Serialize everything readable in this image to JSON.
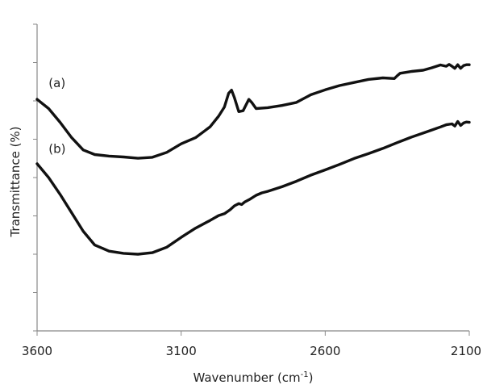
{
  "chart_data": {
    "type": "line",
    "title": "",
    "xlabel": "Wavenumber (cm",
    "xlabel_sup": "-1",
    "xlabel_close": ")",
    "ylabel": "Transmittance (%)",
    "xlim": [
      3600,
      2100
    ],
    "x_reversed": true,
    "ylim": [
      0,
      100
    ],
    "y_tick_labels_shown": false,
    "y_tick_count": 8,
    "x_ticks": [
      3600,
      3100,
      2600,
      2100
    ],
    "x_tick_labels": [
      "3600",
      "3100",
      "2600",
      "2100"
    ],
    "grid": false,
    "series": [
      {
        "name": "(a)",
        "color": "#111111",
        "points": [
          [
            3600,
            75.5
          ],
          [
            3560,
            72.5
          ],
          [
            3520,
            68.0
          ],
          [
            3480,
            63.0
          ],
          [
            3440,
            59.0
          ],
          [
            3400,
            57.5
          ],
          [
            3350,
            57.0
          ],
          [
            3300,
            56.7
          ],
          [
            3250,
            56.3
          ],
          [
            3200,
            56.6
          ],
          [
            3150,
            58.2
          ],
          [
            3100,
            61.0
          ],
          [
            3050,
            63.0
          ],
          [
            3000,
            66.5
          ],
          [
            2970,
            70.0
          ],
          [
            2950,
            73.0
          ],
          [
            2935,
            77.5
          ],
          [
            2925,
            78.5
          ],
          [
            2915,
            76.0
          ],
          [
            2900,
            71.5
          ],
          [
            2885,
            71.8
          ],
          [
            2865,
            75.5
          ],
          [
            2855,
            74.5
          ],
          [
            2840,
            72.5
          ],
          [
            2800,
            72.8
          ],
          [
            2750,
            73.5
          ],
          [
            2700,
            74.5
          ],
          [
            2650,
            77.0
          ],
          [
            2600,
            78.6
          ],
          [
            2550,
            80.0
          ],
          [
            2500,
            81.0
          ],
          [
            2450,
            82.0
          ],
          [
            2400,
            82.5
          ],
          [
            2360,
            82.3
          ],
          [
            2350,
            83.2
          ],
          [
            2340,
            84.0
          ],
          [
            2300,
            84.6
          ],
          [
            2260,
            85.0
          ],
          [
            2230,
            85.8
          ],
          [
            2200,
            86.7
          ],
          [
            2180,
            86.3
          ],
          [
            2170,
            86.9
          ],
          [
            2160,
            86.3
          ],
          [
            2150,
            85.6
          ],
          [
            2140,
            86.8
          ],
          [
            2130,
            85.6
          ],
          [
            2120,
            86.5
          ],
          [
            2110,
            86.8
          ],
          [
            2100,
            86.8
          ]
        ]
      },
      {
        "name": "(b)",
        "color": "#111111",
        "points": [
          [
            3600,
            54.5
          ],
          [
            3560,
            50.0
          ],
          [
            3520,
            44.5
          ],
          [
            3480,
            38.5
          ],
          [
            3440,
            32.5
          ],
          [
            3400,
            28.0
          ],
          [
            3350,
            26.0
          ],
          [
            3300,
            25.3
          ],
          [
            3250,
            25.0
          ],
          [
            3200,
            25.5
          ],
          [
            3150,
            27.3
          ],
          [
            3100,
            30.5
          ],
          [
            3050,
            33.5
          ],
          [
            3000,
            36.0
          ],
          [
            2970,
            37.6
          ],
          [
            2950,
            38.2
          ],
          [
            2930,
            39.5
          ],
          [
            2915,
            40.8
          ],
          [
            2900,
            41.5
          ],
          [
            2890,
            41.2
          ],
          [
            2880,
            42.0
          ],
          [
            2860,
            43.0
          ],
          [
            2840,
            44.2
          ],
          [
            2820,
            45.0
          ],
          [
            2800,
            45.5
          ],
          [
            2750,
            47.0
          ],
          [
            2700,
            48.8
          ],
          [
            2650,
            50.8
          ],
          [
            2600,
            52.5
          ],
          [
            2550,
            54.3
          ],
          [
            2500,
            56.2
          ],
          [
            2450,
            57.8
          ],
          [
            2400,
            59.5
          ],
          [
            2350,
            61.4
          ],
          [
            2300,
            63.2
          ],
          [
            2260,
            64.5
          ],
          [
            2230,
            65.5
          ],
          [
            2200,
            66.5
          ],
          [
            2180,
            67.2
          ],
          [
            2160,
            67.5
          ],
          [
            2150,
            66.8
          ],
          [
            2140,
            68.3
          ],
          [
            2130,
            67.0
          ],
          [
            2120,
            67.8
          ],
          [
            2110,
            68.1
          ],
          [
            2100,
            68.0
          ]
        ]
      }
    ],
    "annotations": [
      {
        "text": "(a)",
        "x": 3560,
        "y": 79.5
      },
      {
        "text": "(b)",
        "x": 3560,
        "y": 58.0
      }
    ]
  }
}
